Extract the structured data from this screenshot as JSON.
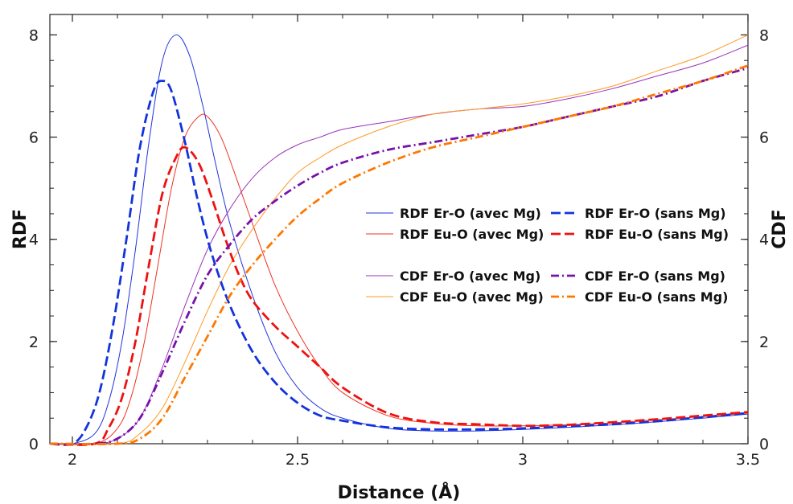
{
  "chart_data": {
    "type": "line",
    "xlabel": "Distance (Å)",
    "ylabel_left": "RDF",
    "ylabel_right": "CDF",
    "xlim": [
      1.95,
      3.5
    ],
    "ylim_left": [
      0,
      8.4
    ],
    "ylim_right": [
      0,
      8.4
    ],
    "xticks": [
      "2",
      "2.5",
      "3",
      "3.5"
    ],
    "yticks_left": [
      "0",
      "2",
      "4",
      "6",
      "8"
    ],
    "yticks_right": [
      "0",
      "2",
      "4",
      "6",
      "8"
    ],
    "legend_placement": "center-right",
    "series": [
      {
        "name": "RDF Er-O (avec Mg)",
        "axis": "left",
        "color": "#2233dd",
        "style": "solid",
        "x": [
          1.95,
          2.0,
          2.05,
          2.08,
          2.11,
          2.14,
          2.17,
          2.2,
          2.23,
          2.26,
          2.29,
          2.32,
          2.35,
          2.4,
          2.45,
          2.5,
          2.55,
          2.6,
          2.7,
          2.8,
          2.9,
          3.0,
          3.1,
          3.2,
          3.3,
          3.4,
          3.5
        ],
        "y": [
          0.0,
          0.0,
          0.2,
          0.8,
          2.0,
          3.8,
          5.9,
          7.5,
          8.0,
          7.6,
          6.6,
          5.4,
          4.3,
          2.9,
          1.8,
          1.1,
          0.7,
          0.5,
          0.3,
          0.25,
          0.25,
          0.28,
          0.32,
          0.37,
          0.43,
          0.5,
          0.58
        ]
      },
      {
        "name": "RDF Eu-O (avec Mg)",
        "axis": "left",
        "color": "#ee3322",
        "style": "solid",
        "x": [
          1.95,
          2.05,
          2.1,
          2.13,
          2.16,
          2.19,
          2.22,
          2.25,
          2.28,
          2.3,
          2.33,
          2.36,
          2.4,
          2.45,
          2.5,
          2.55,
          2.6,
          2.7,
          2.8,
          2.9,
          3.0,
          3.1,
          3.2,
          3.3,
          3.4,
          3.5
        ],
        "y": [
          0.0,
          0.0,
          0.3,
          0.9,
          2.0,
          3.5,
          5.0,
          6.0,
          6.4,
          6.4,
          6.0,
          5.3,
          4.3,
          3.1,
          2.2,
          1.5,
          1.0,
          0.55,
          0.4,
          0.35,
          0.35,
          0.37,
          0.41,
          0.47,
          0.53,
          0.6
        ]
      },
      {
        "name": "CDF Er-O (avec Mg)",
        "axis": "right",
        "color": "#9933bb",
        "style": "solid",
        "x": [
          1.95,
          2.05,
          2.1,
          2.15,
          2.2,
          2.25,
          2.3,
          2.35,
          2.4,
          2.45,
          2.5,
          2.55,
          2.6,
          2.7,
          2.8,
          2.9,
          3.0,
          3.1,
          3.2,
          3.3,
          3.4,
          3.5
        ],
        "y": [
          0.0,
          0.0,
          0.1,
          0.5,
          1.5,
          2.7,
          3.8,
          4.6,
          5.2,
          5.6,
          5.85,
          6.0,
          6.15,
          6.3,
          6.45,
          6.55,
          6.6,
          6.75,
          6.95,
          7.2,
          7.45,
          7.8
        ]
      },
      {
        "name": "CDF Eu-O (avec Mg)",
        "axis": "right",
        "color": "#ff9922",
        "style": "solid",
        "x": [
          1.95,
          2.1,
          2.15,
          2.2,
          2.25,
          2.3,
          2.35,
          2.4,
          2.45,
          2.5,
          2.55,
          2.6,
          2.7,
          2.8,
          2.9,
          3.0,
          3.1,
          3.2,
          3.3,
          3.4,
          3.5
        ],
        "y": [
          0.0,
          0.0,
          0.2,
          0.7,
          1.6,
          2.6,
          3.5,
          4.2,
          4.8,
          5.3,
          5.6,
          5.85,
          6.2,
          6.45,
          6.55,
          6.65,
          6.8,
          7.0,
          7.3,
          7.6,
          8.0
        ]
      },
      {
        "name": "RDF Er-O (sans Mg)",
        "axis": "left",
        "color": "#1133dd",
        "style": "dashed",
        "x": [
          1.95,
          2.0,
          2.03,
          2.06,
          2.09,
          2.12,
          2.15,
          2.18,
          2.2,
          2.22,
          2.25,
          2.28,
          2.31,
          2.35,
          2.4,
          2.45,
          2.5,
          2.55,
          2.6,
          2.7,
          2.8,
          2.9,
          3.0,
          3.1,
          3.2,
          3.3,
          3.4,
          3.5
        ],
        "y": [
          0.0,
          0.0,
          0.3,
          1.0,
          2.3,
          4.0,
          5.8,
          6.9,
          7.1,
          6.9,
          5.9,
          4.7,
          3.7,
          2.7,
          1.8,
          1.2,
          0.8,
          0.55,
          0.45,
          0.32,
          0.28,
          0.28,
          0.3,
          0.34,
          0.38,
          0.44,
          0.52,
          0.6
        ]
      },
      {
        "name": "RDF Eu-O (sans Mg)",
        "axis": "left",
        "color": "#ee1111",
        "style": "dashed",
        "x": [
          1.95,
          2.05,
          2.08,
          2.11,
          2.14,
          2.17,
          2.2,
          2.23,
          2.25,
          2.28,
          2.31,
          2.34,
          2.37,
          2.4,
          2.45,
          2.5,
          2.55,
          2.6,
          2.7,
          2.8,
          2.9,
          3.0,
          3.1,
          3.2,
          3.3,
          3.4,
          3.5
        ],
        "y": [
          0.0,
          0.0,
          0.3,
          0.9,
          2.0,
          3.5,
          4.9,
          5.6,
          5.8,
          5.5,
          4.8,
          4.0,
          3.3,
          2.8,
          2.3,
          1.9,
          1.5,
          1.1,
          0.6,
          0.42,
          0.38,
          0.35,
          0.37,
          0.42,
          0.48,
          0.55,
          0.62
        ]
      },
      {
        "name": "CDF Er-O (sans Mg)",
        "axis": "right",
        "color": "#7711aa",
        "style": "dashdot",
        "x": [
          1.95,
          2.05,
          2.1,
          2.15,
          2.2,
          2.25,
          2.3,
          2.35,
          2.4,
          2.45,
          2.5,
          2.55,
          2.6,
          2.7,
          2.8,
          2.9,
          3.0,
          3.1,
          3.2,
          3.3,
          3.4,
          3.5
        ],
        "y": [
          0.0,
          0.0,
          0.1,
          0.5,
          1.4,
          2.4,
          3.3,
          3.9,
          4.4,
          4.75,
          5.05,
          5.3,
          5.5,
          5.75,
          5.9,
          6.05,
          6.2,
          6.4,
          6.6,
          6.8,
          7.1,
          7.35
        ]
      },
      {
        "name": "CDF Eu-O (sans Mg)",
        "axis": "right",
        "color": "#ff7700",
        "style": "dashdot",
        "x": [
          1.95,
          2.1,
          2.15,
          2.2,
          2.25,
          2.3,
          2.35,
          2.4,
          2.45,
          2.5,
          2.55,
          2.6,
          2.7,
          2.8,
          2.9,
          3.0,
          3.1,
          3.2,
          3.3,
          3.4,
          3.5
        ],
        "y": [
          0.0,
          0.0,
          0.1,
          0.5,
          1.3,
          2.1,
          2.9,
          3.5,
          4.0,
          4.45,
          4.8,
          5.1,
          5.5,
          5.8,
          6.0,
          6.2,
          6.4,
          6.6,
          6.85,
          7.1,
          7.4
        ]
      }
    ],
    "legend_columns": [
      [
        "RDF Er-O (avec Mg)",
        "RDF Eu-O (avec Mg)",
        "",
        "CDF Er-O (avec Mg)",
        "CDF Eu-O (avec Mg)"
      ],
      [
        "RDF Er-O (sans Mg)",
        "RDF Eu-O (sans Mg)",
        "",
        "CDF Er-O (sans Mg)",
        "CDF Eu-O (sans Mg)"
      ]
    ]
  }
}
